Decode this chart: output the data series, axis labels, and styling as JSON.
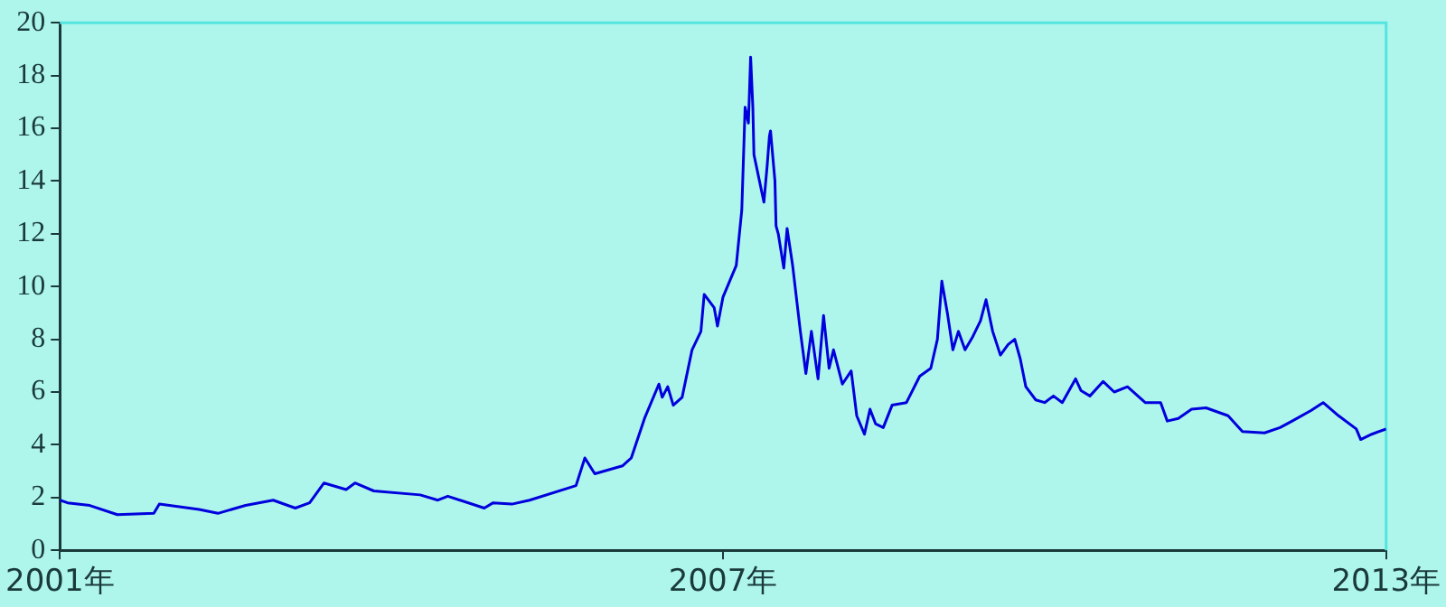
{
  "chart_data": {
    "type": "line",
    "xlim": [
      2001,
      2013
    ],
    "xticks": [
      {
        "value": 2001,
        "label": "2001年"
      },
      {
        "value": 2007,
        "label": "2007年"
      },
      {
        "value": 2013,
        "label": "2013年"
      }
    ],
    "ylim": [
      0,
      20
    ],
    "yticks": [
      0,
      2,
      4,
      6,
      8,
      10,
      12,
      14,
      16,
      18,
      20
    ],
    "grid": false,
    "legend": false,
    "marker": "none",
    "line_style": "solid",
    "series": [
      {
        "color": "#0000dd",
        "x": [
          2001,
          2001.07,
          2001.27,
          2001.52,
          2001.85,
          2001.9,
          2002.26,
          2002.43,
          2002.68,
          2002.93,
          2003.13,
          2003.26,
          2003.39,
          2003.59,
          2003.67,
          2003.84,
          2004.26,
          2004.42,
          2004.51,
          2004.84,
          2004.92,
          2005.09,
          2005.25,
          2005.67,
          2005.75,
          2005.84,
          2006.09,
          2006.17,
          2006.29,
          2006.42,
          2006.45,
          2006.5,
          2006.55,
          2006.63,
          2006.72,
          2006.8,
          2006.83,
          2006.92,
          2006.95,
          2007,
          2007.12,
          2007.17,
          2007.2,
          2007.23,
          2007.25,
          2007.27,
          2007.28,
          2007.33,
          2007.37,
          2007.4,
          2007.42,
          2007.43,
          2007.47,
          2007.48,
          2007.5,
          2007.55,
          2007.58,
          2007.63,
          2007.7,
          2007.75,
          2007.8,
          2007.86,
          2007.91,
          2007.96,
          2008,
          2008.08,
          2008.16,
          2008.21,
          2008.28,
          2008.33,
          2008.38,
          2008.45,
          2008.53,
          2008.66,
          2008.78,
          2008.88,
          2008.94,
          2008.98,
          2009.03,
          2009.08,
          2009.13,
          2009.19,
          2009.26,
          2009.33,
          2009.38,
          2009.44,
          2009.51,
          2009.58,
          2009.64,
          2009.69,
          2009.74,
          2009.83,
          2009.91,
          2009.99,
          2010.07,
          2010.19,
          2010.24,
          2010.32,
          2010.44,
          2010.54,
          2010.66,
          2010.82,
          2010.96,
          2011.02,
          2011.12,
          2011.24,
          2011.37,
          2011.57,
          2011.7,
          2011.9,
          2012.04,
          2012.15,
          2012.32,
          2012.43,
          2012.57,
          2012.73,
          2012.77,
          2012.87,
          2013
        ],
        "values": [
          1.9,
          1.8,
          1.7,
          1.35,
          1.4,
          1.75,
          1.55,
          1.4,
          1.7,
          1.9,
          1.6,
          1.8,
          2.55,
          2.3,
          2.55,
          2.25,
          2.1,
          1.9,
          2.05,
          1.6,
          1.8,
          1.75,
          1.9,
          2.45,
          3.5,
          2.9,
          3.2,
          3.5,
          5.0,
          6.3,
          5.8,
          6.2,
          5.5,
          5.8,
          7.6,
          8.3,
          9.7,
          9.2,
          8.5,
          9.6,
          10.8,
          12.9,
          16.8,
          16.2,
          18.7,
          16.8,
          15.0,
          14.0,
          13.2,
          14.6,
          15.7,
          15.9,
          14.0,
          12.3,
          12.0,
          10.7,
          12.2,
          10.8,
          8.3,
          6.7,
          8.3,
          6.5,
          8.9,
          6.9,
          7.6,
          6.3,
          6.8,
          5.1,
          4.4,
          5.35,
          4.8,
          4.65,
          5.5,
          5.6,
          6.6,
          6.9,
          8.0,
          10.2,
          9.0,
          7.6,
          8.3,
          7.6,
          8.1,
          8.7,
          9.5,
          8.3,
          7.4,
          7.8,
          8.0,
          7.25,
          6.2,
          5.7,
          5.6,
          5.85,
          5.6,
          6.5,
          6.05,
          5.85,
          6.4,
          6.0,
          6.2,
          5.6,
          5.6,
          4.9,
          5.0,
          5.35,
          5.4,
          5.1,
          4.5,
          4.45,
          4.65,
          4.9,
          5.3,
          5.6,
          5.1,
          4.6,
          4.2,
          4.4,
          4.6
        ]
      }
    ]
  }
}
